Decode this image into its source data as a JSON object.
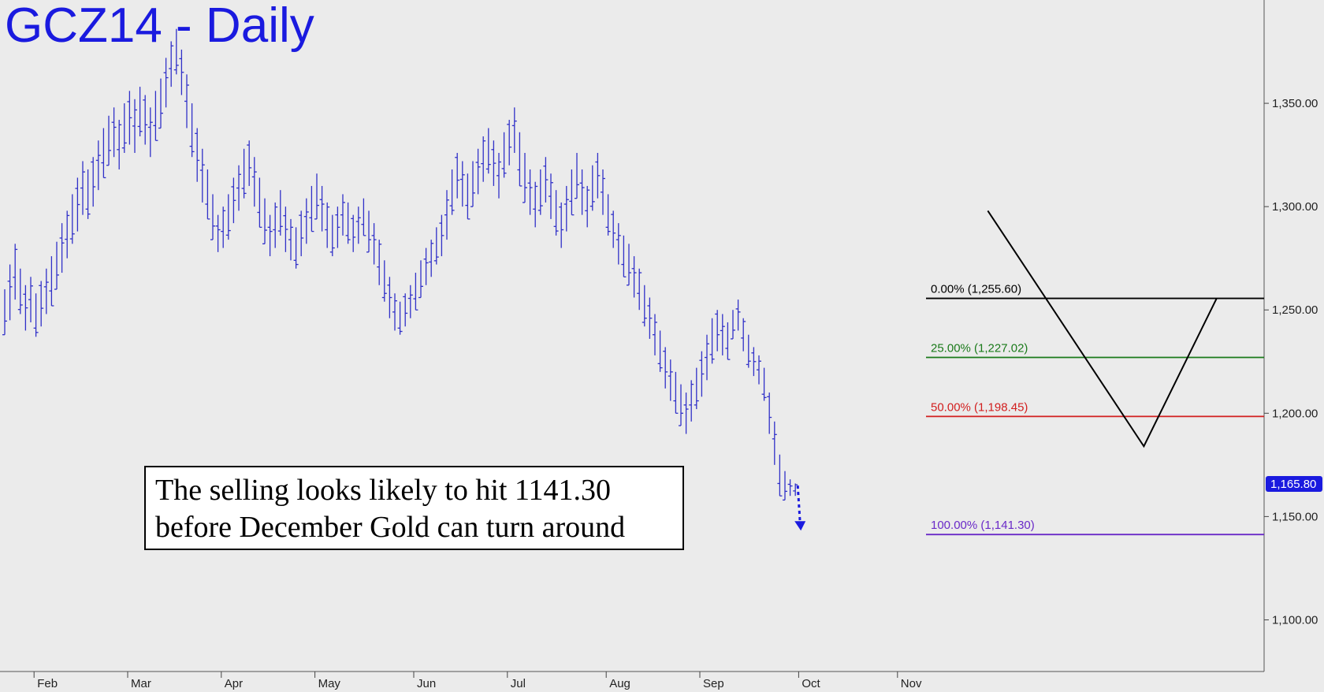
{
  "title": "GCZ14 - Daily",
  "annotation": {
    "line1": "The selling looks likely to hit 1141.30",
    "line2": "before December Gold can turn around"
  },
  "colors": {
    "bars": "#3030c8",
    "fib_0": "#000000",
    "fib_25": "#1a7a1a",
    "fib_50": "#d21e1e",
    "fib_100": "#6a2ac8",
    "pattern": "#000000",
    "arrow": "#1a1adf",
    "last_price_bg": "#1a1adf"
  },
  "chart_data": {
    "type": "ohlc-bar",
    "ylim": [
      1075,
      1400
    ],
    "y_ticks": [
      {
        "value": 1100,
        "label": "1,100.00"
      },
      {
        "value": 1150,
        "label": "1,150.00"
      },
      {
        "value": 1200,
        "label": "1,200.00"
      },
      {
        "value": 1250,
        "label": "1,250.00"
      },
      {
        "value": 1300,
        "label": "1,300.00"
      },
      {
        "value": 1350,
        "label": "1,350.00"
      }
    ],
    "months": [
      "Feb",
      "Mar",
      "Apr",
      "May",
      "Jun",
      "Jul",
      "Aug",
      "Sep",
      "Oct",
      "Nov"
    ],
    "last_price": {
      "value": 1165.8,
      "label": "1,165.80"
    },
    "fib_levels": [
      {
        "pct": "0.00%",
        "value": 1255.6,
        "label": "0.00% (1,255.60)",
        "color_key": "fib_0"
      },
      {
        "pct": "25.00%",
        "value": 1227.02,
        "label": "25.00% (1,227.02)",
        "color_key": "fib_25"
      },
      {
        "pct": "50.00%",
        "value": 1198.45,
        "label": "50.00% (1,198.45)",
        "color_key": "fib_50"
      },
      {
        "pct": "100.00%",
        "value": 1141.3,
        "label": "100.00% (1,141.30)",
        "color_key": "fib_100"
      }
    ],
    "pattern_points": [
      {
        "bar": 189,
        "value": 1298
      },
      {
        "bar": 219,
        "value": 1184
      },
      {
        "bar": 233,
        "value": 1255.6
      }
    ],
    "bars": [
      [
        1260,
        1238
      ],
      [
        1272,
        1245
      ],
      [
        1282,
        1255
      ],
      [
        1270,
        1248
      ],
      [
        1262,
        1240
      ],
      [
        1266,
        1244
      ],
      [
        1258,
        1237
      ],
      [
        1264,
        1242
      ],
      [
        1270,
        1248
      ],
      [
        1276,
        1252
      ],
      [
        1283,
        1260
      ],
      [
        1292,
        1268
      ],
      [
        1298,
        1275
      ],
      [
        1306,
        1282
      ],
      [
        1314,
        1288
      ],
      [
        1322,
        1296
      ],
      [
        1318,
        1294
      ],
      [
        1324,
        1300
      ],
      [
        1332,
        1308
      ],
      [
        1338,
        1314
      ],
      [
        1344,
        1320
      ],
      [
        1348,
        1324
      ],
      [
        1342,
        1318
      ],
      [
        1350,
        1326
      ],
      [
        1356,
        1330
      ],
      [
        1352,
        1326
      ],
      [
        1358,
        1334
      ],
      [
        1354,
        1330
      ],
      [
        1348,
        1324
      ],
      [
        1356,
        1332
      ],
      [
        1362,
        1338
      ],
      [
        1372,
        1348
      ],
      [
        1380,
        1358
      ],
      [
        1386,
        1364
      ],
      [
        1376,
        1354
      ],
      [
        1364,
        1338
      ],
      [
        1350,
        1324
      ],
      [
        1338,
        1312
      ],
      [
        1328,
        1302
      ],
      [
        1318,
        1294
      ],
      [
        1306,
        1284
      ],
      [
        1296,
        1278
      ],
      [
        1300,
        1280
      ],
      [
        1306,
        1284
      ],
      [
        1314,
        1292
      ],
      [
        1320,
        1298
      ],
      [
        1328,
        1304
      ],
      [
        1332,
        1310
      ],
      [
        1324,
        1300
      ],
      [
        1314,
        1290
      ],
      [
        1304,
        1282
      ],
      [
        1296,
        1276
      ],
      [
        1302,
        1280
      ],
      [
        1308,
        1286
      ],
      [
        1300,
        1278
      ],
      [
        1294,
        1274
      ],
      [
        1290,
        1270
      ],
      [
        1298,
        1276
      ],
      [
        1304,
        1282
      ],
      [
        1310,
        1288
      ],
      [
        1316,
        1294
      ],
      [
        1310,
        1288
      ],
      [
        1302,
        1280
      ],
      [
        1296,
        1276
      ],
      [
        1300,
        1280
      ],
      [
        1306,
        1286
      ],
      [
        1302,
        1282
      ],
      [
        1296,
        1278
      ],
      [
        1300,
        1282
      ],
      [
        1304,
        1286
      ],
      [
        1298,
        1278
      ],
      [
        1292,
        1272
      ],
      [
        1284,
        1262
      ],
      [
        1274,
        1254
      ],
      [
        1266,
        1246
      ],
      [
        1258,
        1240
      ],
      [
        1254,
        1238
      ],
      [
        1258,
        1242
      ],
      [
        1262,
        1246
      ],
      [
        1268,
        1250
      ],
      [
        1274,
        1256
      ],
      [
        1280,
        1262
      ],
      [
        1284,
        1266
      ],
      [
        1290,
        1272
      ],
      [
        1296,
        1276
      ],
      [
        1308,
        1284
      ],
      [
        1318,
        1296
      ],
      [
        1326,
        1304
      ],
      [
        1322,
        1300
      ],
      [
        1316,
        1294
      ],
      [
        1322,
        1300
      ],
      [
        1328,
        1306
      ],
      [
        1334,
        1312
      ],
      [
        1338,
        1316
      ],
      [
        1332,
        1310
      ],
      [
        1326,
        1304
      ],
      [
        1336,
        1314
      ],
      [
        1342,
        1320
      ],
      [
        1348,
        1326
      ],
      [
        1336,
        1310
      ],
      [
        1326,
        1302
      ],
      [
        1318,
        1296
      ],
      [
        1312,
        1290
      ],
      [
        1318,
        1296
      ],
      [
        1324,
        1302
      ],
      [
        1316,
        1294
      ],
      [
        1308,
        1286
      ],
      [
        1302,
        1280
      ],
      [
        1310,
        1288
      ],
      [
        1318,
        1296
      ],
      [
        1326,
        1304
      ],
      [
        1318,
        1296
      ],
      [
        1310,
        1290
      ],
      [
        1320,
        1298
      ],
      [
        1326,
        1304
      ],
      [
        1318,
        1296
      ],
      [
        1306,
        1286
      ],
      [
        1298,
        1280
      ],
      [
        1292,
        1272
      ],
      [
        1286,
        1266
      ],
      [
        1282,
        1262
      ],
      [
        1276,
        1256
      ],
      [
        1270,
        1250
      ],
      [
        1262,
        1242
      ],
      [
        1256,
        1236
      ],
      [
        1248,
        1228
      ],
      [
        1240,
        1220
      ],
      [
        1232,
        1212
      ],
      [
        1226,
        1206
      ],
      [
        1220,
        1200
      ],
      [
        1214,
        1194
      ],
      [
        1210,
        1190
      ],
      [
        1216,
        1196
      ],
      [
        1222,
        1202
      ],
      [
        1230,
        1208
      ],
      [
        1238,
        1216
      ],
      [
        1246,
        1224
      ],
      [
        1250,
        1230
      ],
      [
        1248,
        1228
      ],
      [
        1244,
        1226
      ],
      [
        1250,
        1236
      ],
      [
        1255,
        1240
      ],
      [
        1246,
        1230
      ],
      [
        1238,
        1222
      ],
      [
        1232,
        1218
      ],
      [
        1228,
        1214
      ],
      [
        1222,
        1206
      ],
      [
        1210,
        1190
      ],
      [
        1196,
        1175
      ],
      [
        1180,
        1160
      ],
      [
        1172,
        1158
      ],
      [
        1168,
        1160
      ],
      [
        1166,
        1160
      ]
    ]
  }
}
